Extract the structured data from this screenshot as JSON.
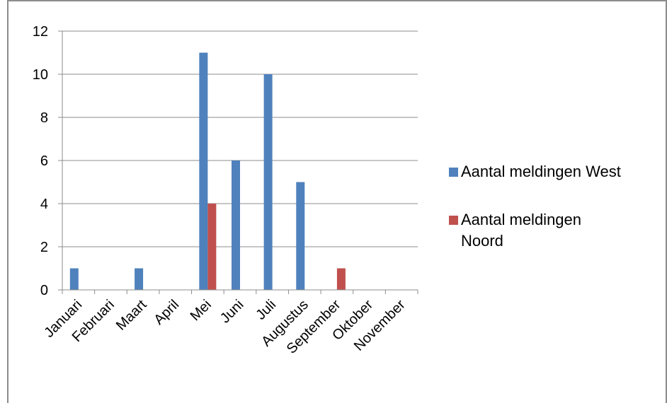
{
  "chart_data": {
    "type": "bar",
    "categories": [
      "Januari",
      "Februari",
      "Maart",
      "April",
      "Mei",
      "Juni",
      "Juli",
      "Augustus",
      "September",
      "Oktober",
      "November"
    ],
    "series": [
      {
        "name": "Aantal meldingen  West",
        "color": "#4f81bd",
        "values": [
          1,
          0,
          1,
          0,
          11,
          6,
          10,
          5,
          0,
          0,
          0
        ]
      },
      {
        "name": "Aantal meldingen Noord",
        "color": "#c0504d",
        "values": [
          0,
          0,
          0,
          0,
          4,
          0,
          0,
          0,
          1,
          0,
          0
        ]
      }
    ],
    "yticks": [
      0,
      2,
      4,
      6,
      8,
      10,
      12
    ],
    "ylim": [
      0,
      12
    ],
    "grid": true,
    "legend_position": "right"
  }
}
